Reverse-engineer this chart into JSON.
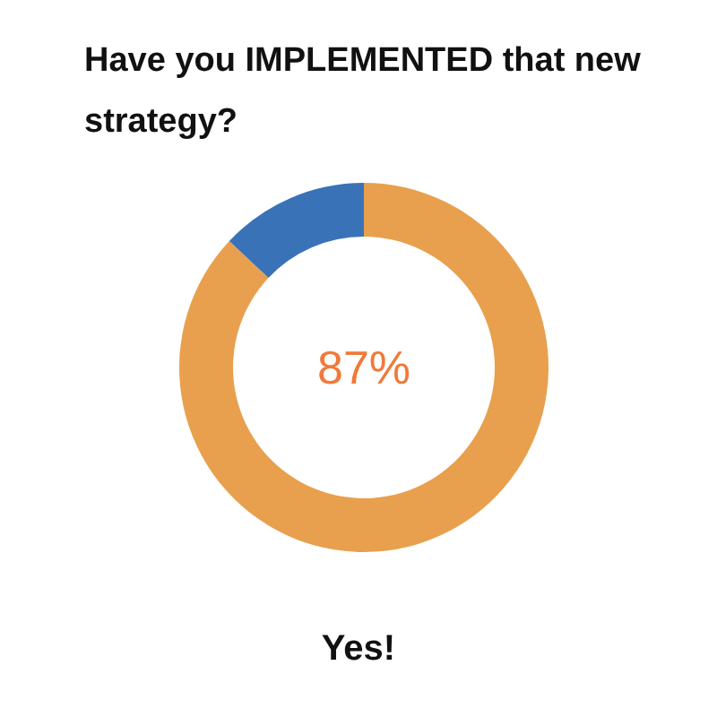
{
  "chart_data": {
    "type": "donut",
    "title": "Have you IMPLEMENTED that new strategy?",
    "categories": [
      "Yes!",
      null
    ],
    "values": [
      87,
      13
    ],
    "colors": [
      "#e8a04e",
      "#3a72b8"
    ],
    "value_labels": [
      "87%",
      null
    ],
    "legend": false
  }
}
